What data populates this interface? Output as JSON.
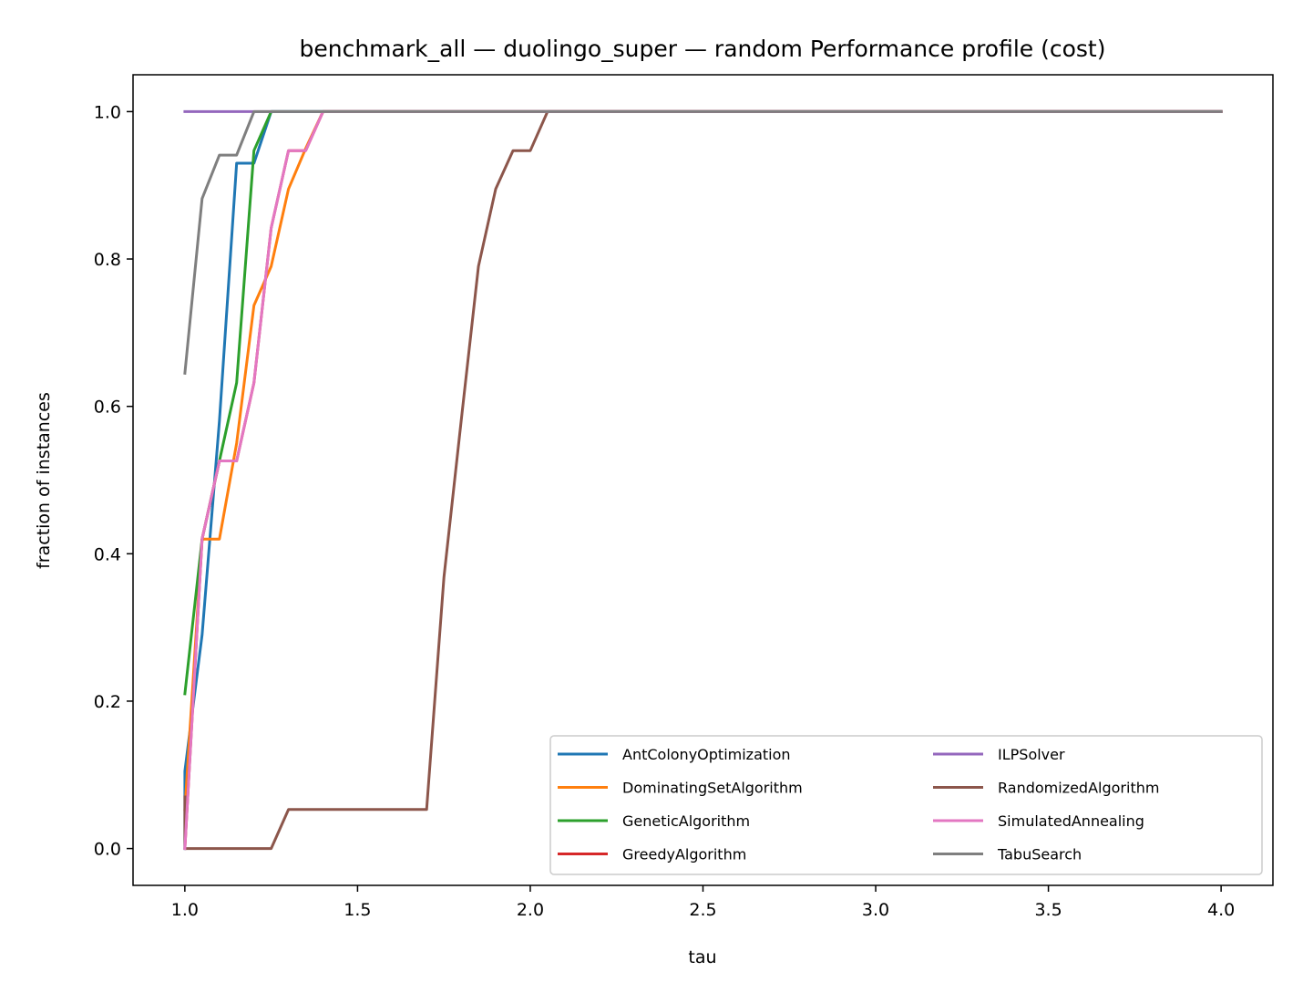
{
  "chart_data": {
    "type": "line",
    "title": "benchmark_all — duolingo_super — random Performance profile (cost)",
    "xlabel": "tau",
    "ylabel": "fraction of instances",
    "xlim": [
      0.85,
      4.15
    ],
    "ylim": [
      -0.05,
      1.05
    ],
    "xticks": [
      1.0,
      1.5,
      2.0,
      2.5,
      3.0,
      3.5,
      4.0
    ],
    "yticks": [
      0.0,
      0.2,
      0.4,
      0.6,
      0.8,
      1.0
    ],
    "xtick_labels": [
      "1.0",
      "1.5",
      "2.0",
      "2.5",
      "3.0",
      "3.5",
      "4.0"
    ],
    "ytick_labels": [
      "0.0",
      "0.2",
      "0.4",
      "0.6",
      "0.8",
      "1.0"
    ],
    "grid": false,
    "legend": {
      "placement": "lower-right",
      "columns": 2
    },
    "series": [
      {
        "name": "AntColonyOptimization",
        "color": "#1f77b4",
        "x": [
          1.0,
          1.0,
          1.05,
          1.1,
          1.15,
          1.2,
          1.25,
          4.0
        ],
        "y": [
          0.0,
          0.105,
          0.29,
          0.58,
          0.93,
          0.93,
          1.0,
          1.0
        ]
      },
      {
        "name": "DominatingSetAlgorithm",
        "color": "#ff7f0e",
        "x": [
          1.0,
          1.05,
          1.1,
          1.15,
          1.2,
          1.25,
          1.3,
          1.35,
          1.4,
          4.0
        ],
        "y": [
          0.053,
          0.42,
          0.42,
          0.55,
          0.737,
          0.79,
          0.895,
          0.95,
          1.0,
          1.0
        ]
      },
      {
        "name": "GeneticAlgorithm",
        "color": "#2ca02c",
        "x": [
          1.0,
          1.05,
          1.1,
          1.15,
          1.2,
          1.25,
          4.0
        ],
        "y": [
          0.21,
          0.42,
          0.526,
          0.632,
          0.947,
          1.0,
          1.0
        ]
      },
      {
        "name": "GreedyAlgorithm",
        "color": "#d62728",
        "x": [
          1.0,
          1.05,
          1.1,
          1.15,
          1.2,
          1.25,
          1.3,
          1.35,
          1.4,
          4.0
        ],
        "y": [
          0.0,
          0.42,
          0.526,
          0.526,
          0.632,
          0.842,
          0.947,
          0.947,
          1.0,
          1.0
        ]
      },
      {
        "name": "ILPSolver",
        "color": "#9467bd",
        "x": [
          1.0,
          4.0
        ],
        "y": [
          1.0,
          1.0
        ]
      },
      {
        "name": "RandomizedAlgorithm",
        "color": "#8c564b",
        "x": [
          1.0,
          1.0,
          1.25,
          1.3,
          1.7,
          1.75,
          1.8,
          1.85,
          1.9,
          1.95,
          2.0,
          2.05,
          4.0
        ],
        "y": [
          0.07,
          0.0,
          0.0,
          0.053,
          0.053,
          0.368,
          0.58,
          0.79,
          0.895,
          0.947,
          0.947,
          1.0,
          1.0
        ]
      },
      {
        "name": "SimulatedAnnealing",
        "color": "#e377c2",
        "x": [
          1.0,
          1.05,
          1.1,
          1.15,
          1.2,
          1.25,
          1.3,
          1.35,
          1.4,
          4.0
        ],
        "y": [
          0.0,
          0.42,
          0.526,
          0.526,
          0.632,
          0.842,
          0.947,
          0.947,
          1.0,
          1.0
        ]
      },
      {
        "name": "TabuSearch",
        "color": "#7f7f7f",
        "x": [
          1.0,
          1.05,
          1.1,
          1.15,
          1.2,
          4.0
        ],
        "y": [
          0.645,
          0.882,
          0.941,
          0.941,
          1.0,
          1.0
        ]
      }
    ]
  }
}
